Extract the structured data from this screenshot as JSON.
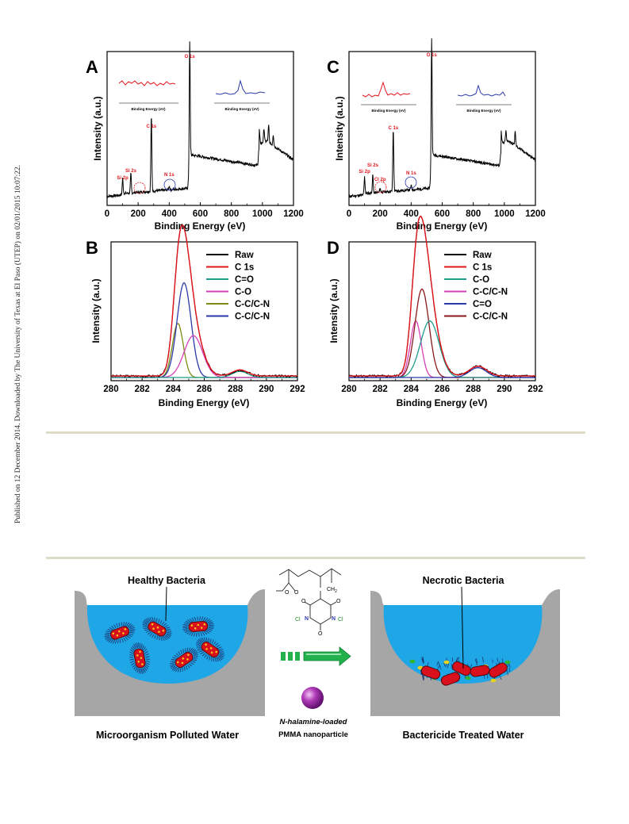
{
  "side_note": "Published on 12 December 2014. Downloaded by The University of Texas at El Paso (UTEP) on 02/01/2015 10:07:22.",
  "colors": {
    "red": "#e0141b",
    "blue": "#2b3aa8",
    "teal": "#1f9c8c",
    "magenta": "#d63fb6",
    "olive": "#7f8a12",
    "darkred": "#8a1a1a",
    "water": "#1ea6e6",
    "rock": "#a6a6a6",
    "arrow_green": "#22b14c"
  },
  "chart_data": [
    {
      "panel": "A",
      "type": "line",
      "xlabel": "Binding Energy (eV)",
      "ylabel": "Intensity (a.u.)",
      "xlim": [
        0,
        1200
      ],
      "xticks": [
        "0",
        "200",
        "400",
        "600",
        "800",
        "1000",
        "1200"
      ],
      "peaks": [
        {
          "label": "Si 2p",
          "x": 100
        },
        {
          "label": "Si 2s",
          "x": 153
        },
        {
          "label": "C 1s",
          "x": 285
        },
        {
          "label": "N 1s",
          "x": 400
        },
        {
          "label": "O 1s",
          "x": 532
        }
      ],
      "inset_left_xlabel": "Binding Energy (eV)",
      "inset_right_xlabel": "Binding Energy (eV)"
    },
    {
      "panel": "C",
      "type": "line",
      "xlabel": "Binding Energy (eV)",
      "ylabel": "Intensity (a.u.)",
      "xlim": [
        0,
        1200
      ],
      "xticks": [
        "0",
        "200",
        "400",
        "600",
        "800",
        "1000",
        "1200"
      ],
      "peaks": [
        {
          "label": "Si 2p",
          "x": 100
        },
        {
          "label": "Si 2s",
          "x": 153
        },
        {
          "label": "Cl 2p",
          "x": 200
        },
        {
          "label": "C 1s",
          "x": 285
        },
        {
          "label": "N 1s",
          "x": 400
        },
        {
          "label": "O 1s",
          "x": 532
        }
      ],
      "inset_left_xlabel": "Binding Energy (eV)",
      "inset_right_xlabel": "Binding Energy (eV)"
    },
    {
      "panel": "B",
      "type": "line",
      "xlabel": "Binding Energy (eV)",
      "ylabel": "Intensity (a.u.)",
      "xlim": [
        280,
        292
      ],
      "xticks": [
        "280",
        "282",
        "284",
        "286",
        "288",
        "290",
        "292"
      ],
      "legend": [
        "Raw",
        "C 1s",
        "C=O",
        "C-O",
        "C-C/C-N",
        "C-C/C-N"
      ],
      "components": [
        {
          "name": "C-C/C-N",
          "center": 284.3,
          "height": 0.44,
          "width": 0.35
        },
        {
          "name": "C-C/C-N",
          "center": 284.7,
          "height": 0.77,
          "width": 0.45
        },
        {
          "name": "C-O",
          "center": 285.3,
          "height": 0.34,
          "width": 0.6
        },
        {
          "name": "C=O",
          "center": 288.3,
          "height": 0.05,
          "width": 0.5
        }
      ]
    },
    {
      "panel": "D",
      "type": "line",
      "xlabel": "Binding Energy (eV)",
      "ylabel": "Intensity (a.u.)",
      "xlim": [
        280,
        292
      ],
      "xticks": [
        "280",
        "282",
        "284",
        "286",
        "288",
        "290",
        "292"
      ],
      "legend": [
        "Raw",
        "C 1s",
        "C-O",
        "C-C/C-N",
        "C=O",
        "C-C/C-N"
      ],
      "components": [
        {
          "name": "C-C/C-N",
          "center": 284.3,
          "height": 0.46,
          "width": 0.35
        },
        {
          "name": "C-C/C-N",
          "center": 284.7,
          "height": 0.72,
          "width": 0.45
        },
        {
          "name": "C-O",
          "center": 285.2,
          "height": 0.46,
          "width": 0.6
        },
        {
          "name": "C=O",
          "center": 288.3,
          "height": 0.08,
          "width": 0.55
        }
      ]
    }
  ],
  "scheme": {
    "left_title": "Healthy Bacteria",
    "right_title": "Necrotic Bacteria",
    "left_caption": "Microorganism Polluted Water",
    "right_caption": "Bactericide Treated Water",
    "particle_caption_1": "N-halamine-loaded",
    "particle_caption_2": "PMMA nanoparticle",
    "chem_ch2": "CH",
    "chem_ch2_sub": "2",
    "chem_n": "N",
    "chem_cl": "Cl",
    "chem_o": "O"
  }
}
